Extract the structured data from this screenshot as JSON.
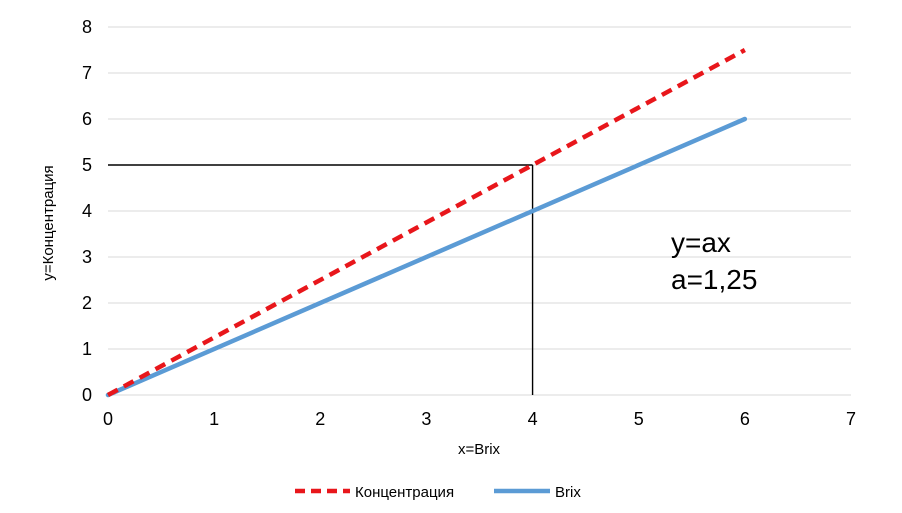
{
  "chart_data": {
    "type": "line",
    "xlabel": "x=Brix",
    "ylabel": "y=Концентрация",
    "xlim": [
      0,
      7
    ],
    "ylim": [
      0,
      8
    ],
    "xticks": [
      0,
      1,
      2,
      3,
      4,
      5,
      6,
      7
    ],
    "yticks": [
      0,
      1,
      2,
      3,
      4,
      5,
      6,
      7,
      8
    ],
    "grid": "horizontal",
    "legend_position": "bottom",
    "series": [
      {
        "name": "Концентрация",
        "x": [
          0,
          6
        ],
        "y": [
          0,
          7.5
        ],
        "color": "#e8161b",
        "style": "dashed"
      },
      {
        "name": "Brix",
        "x": [
          0,
          6
        ],
        "y": [
          0,
          6
        ],
        "color": "#5b9bd5",
        "style": "solid"
      }
    ],
    "guide_lines": [
      {
        "x": [
          0,
          4
        ],
        "y": [
          5,
          5
        ],
        "color": "#000000"
      },
      {
        "x": [
          4,
          4
        ],
        "y": [
          5,
          0
        ],
        "color": "#000000"
      }
    ],
    "annotations": [
      "y=ax",
      "a=1,25"
    ]
  }
}
